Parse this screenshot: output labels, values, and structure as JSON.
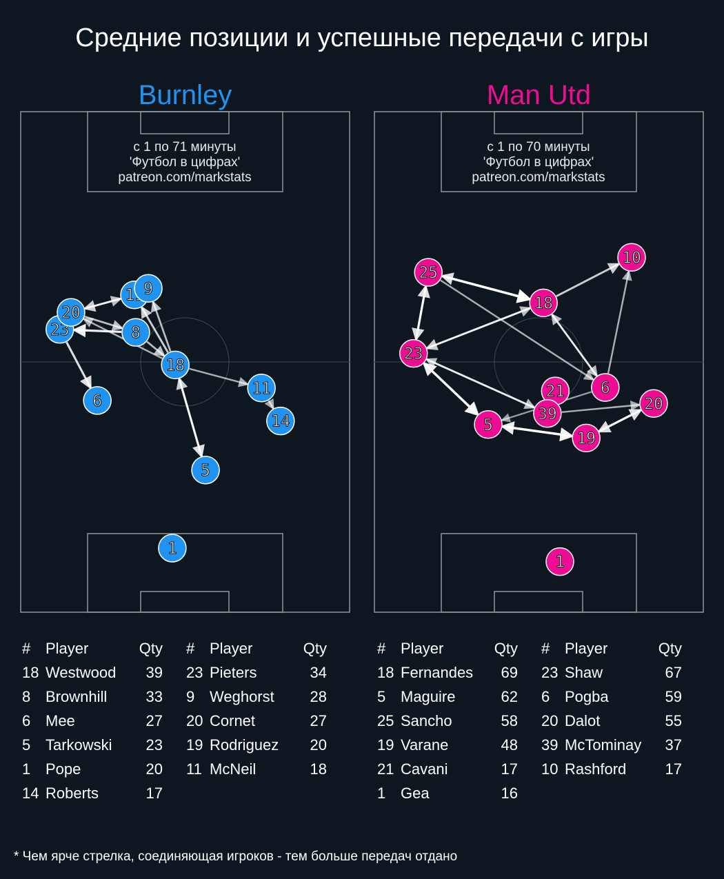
{
  "title": "Средние позиции и успешные передачи с игры",
  "footnote": "* Чем ярче стрелка, соединяющая игроков - тем больше передач отдано",
  "colors": {
    "background": "#0e1720",
    "home": "#1f93ef",
    "away": "#ec0d93",
    "pitch_lines": "#8a9a9a"
  },
  "chart_data": [
    {
      "type": "scatter",
      "team": "Burnley",
      "color": "#1f93ef",
      "info": [
        "с 1 по 71 минуты",
        "'Футбол в цифрах'",
        "patreon.com/markstats"
      ],
      "players": [
        {
          "n": "18",
          "x": 47.0,
          "y": 50.6
        },
        {
          "n": "8",
          "x": 35.0,
          "y": 44.1
        },
        {
          "n": "6",
          "x": 23.3,
          "y": 57.7
        },
        {
          "n": "5",
          "x": 56.2,
          "y": 71.6
        },
        {
          "n": "1",
          "x": 46.1,
          "y": 87.2
        },
        {
          "n": "14",
          "x": 79.0,
          "y": 61.8
        },
        {
          "n": "23",
          "x": 11.9,
          "y": 43.5
        },
        {
          "n": "20",
          "x": 15.3,
          "y": 40.1
        },
        {
          "n": "19",
          "x": 34.6,
          "y": 36.6
        },
        {
          "n": "9",
          "x": 38.8,
          "y": 35.3
        },
        {
          "n": "11",
          "x": 73.2,
          "y": 55.2
        }
      ],
      "passes": [
        [
          "18",
          "9",
          0.6
        ],
        [
          "18",
          "19",
          0.7
        ],
        [
          "8",
          "18",
          0.6
        ],
        [
          "20",
          "8",
          0.6
        ],
        [
          "8",
          "23",
          0.9
        ],
        [
          "19",
          "20",
          0.7
        ],
        [
          "20",
          "19",
          0.6
        ],
        [
          "23",
          "6",
          0.8
        ],
        [
          "18",
          "11",
          0.5
        ],
        [
          "11",
          "14",
          0.5
        ],
        [
          "18",
          "5",
          0.8
        ],
        [
          "5",
          "18",
          0.7
        ],
        [
          "18",
          "20",
          0.5
        ]
      ],
      "table": {
        "headers": [
          "#",
          "Player",
          "Qty"
        ],
        "rows": [
          [
            "18",
            "Westwood",
            "39"
          ],
          [
            "8",
            "Brownhill",
            "33"
          ],
          [
            "6",
            "Mee",
            "27"
          ],
          [
            "5",
            "Tarkowski",
            "23"
          ],
          [
            "1",
            "Pope",
            "20"
          ],
          [
            "14",
            "Roberts",
            "17"
          ],
          [
            "23",
            "Pieters",
            "34"
          ],
          [
            "9",
            "Weghorst",
            "28"
          ],
          [
            "20",
            "Cornet",
            "27"
          ],
          [
            "19",
            "Rodriguez",
            "20"
          ],
          [
            "11",
            "McNeil",
            "18"
          ]
        ]
      }
    },
    {
      "type": "scatter",
      "team": "Man Utd",
      "color": "#ec0d93",
      "info": [
        "с 1 по 70 минуты",
        "'Футбол в цифрах'",
        "patreon.com/markstats"
      ],
      "players": [
        {
          "n": "18",
          "x": 51.4,
          "y": 38.2
        },
        {
          "n": "5",
          "x": 34.6,
          "y": 62.5
        },
        {
          "n": "25",
          "x": 16.4,
          "y": 32.1
        },
        {
          "n": "19",
          "x": 64.4,
          "y": 65.2
        },
        {
          "n": "21",
          "x": 55.0,
          "y": 55.8
        },
        {
          "n": "1",
          "x": 56.4,
          "y": 89.9
        },
        {
          "n": "23",
          "x": 11.9,
          "y": 48.3
        },
        {
          "n": "6",
          "x": 70.2,
          "y": 55.1
        },
        {
          "n": "20",
          "x": 84.9,
          "y": 58.3
        },
        {
          "n": "39",
          "x": 52.6,
          "y": 60.3
        },
        {
          "n": "10",
          "x": 78.2,
          "y": 29.1
        }
      ],
      "passes": [
        [
          "25",
          "18",
          1.0
        ],
        [
          "18",
          "25",
          0.8
        ],
        [
          "25",
          "23",
          0.8
        ],
        [
          "23",
          "25",
          0.8
        ],
        [
          "18",
          "10",
          0.7
        ],
        [
          "18",
          "23",
          0.7
        ],
        [
          "23",
          "18",
          0.6
        ],
        [
          "25",
          "6",
          0.5
        ],
        [
          "6",
          "18",
          0.6
        ],
        [
          "18",
          "6",
          0.6
        ],
        [
          "6",
          "10",
          0.5
        ],
        [
          "23",
          "5",
          0.95
        ],
        [
          "5",
          "23",
          0.9
        ],
        [
          "23",
          "39",
          0.6
        ],
        [
          "39",
          "23",
          0.6
        ],
        [
          "6",
          "5",
          0.4
        ],
        [
          "5",
          "19",
          0.95
        ],
        [
          "19",
          "5",
          0.9
        ],
        [
          "19",
          "20",
          0.8
        ],
        [
          "20",
          "19",
          0.8
        ],
        [
          "39",
          "20",
          0.5
        ]
      ],
      "table": {
        "headers": [
          "#",
          "Player",
          "Qty"
        ],
        "rows": [
          [
            "18",
            "Fernandes",
            "69"
          ],
          [
            "5",
            "Maguire",
            "62"
          ],
          [
            "25",
            "Sancho",
            "58"
          ],
          [
            "19",
            "Varane",
            "48"
          ],
          [
            "21",
            "Cavani",
            "17"
          ],
          [
            "1",
            "Gea",
            "16"
          ],
          [
            "23",
            "Shaw",
            "67"
          ],
          [
            "6",
            "Pogba",
            "59"
          ],
          [
            "20",
            "Dalot",
            "55"
          ],
          [
            "39",
            "McTominay",
            "37"
          ],
          [
            "10",
            "Rashford",
            "17"
          ]
        ]
      }
    }
  ]
}
